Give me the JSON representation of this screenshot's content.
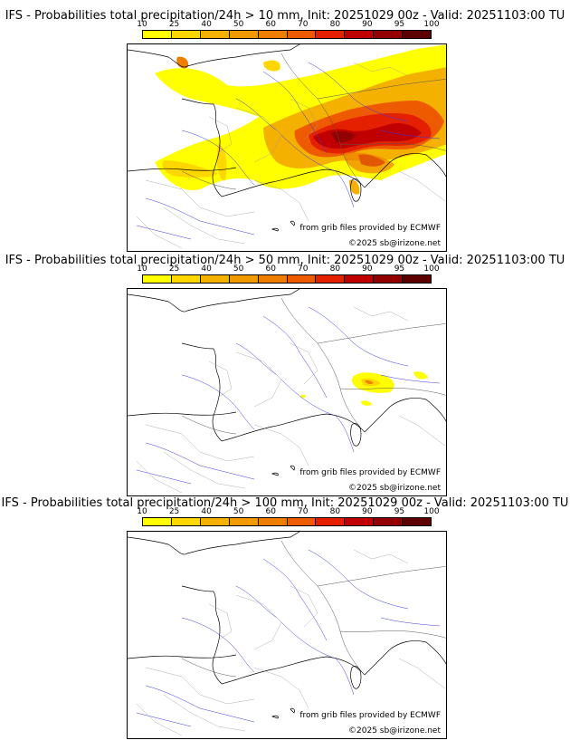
{
  "legend": {
    "ticks": [
      "10",
      "25",
      "40",
      "50",
      "60",
      "70",
      "80",
      "90",
      "95",
      "100"
    ],
    "colors": [
      "#ffff00",
      "#ffd700",
      "#f5b100",
      "#f09a00",
      "#ee7d00",
      "#ee5a00",
      "#e52000",
      "#c00000",
      "#930000",
      "#5e0000"
    ]
  },
  "panels": [
    {
      "title": "IFS - Probabilities total precipitation/24h > 10 mm, Init: 20251029 00z - Valid: 20251103:00 TU",
      "source": "from grib files provided by ECMWF",
      "copyright": "©2025 sb@irizone.net"
    },
    {
      "title": "IFS - Probabilities total precipitation/24h > 50 mm, Init: 20251029 00z - Valid: 20251103:00 TU",
      "source": "from grib files provided by ECMWF",
      "copyright": "©2025 sb@irizone.net"
    },
    {
      "title": "IFS - Probabilities total precipitation/24h > 100 mm, Init: 20251029 00z - Valid: 20251103:00 TU",
      "source": "from grib files provided by ECMWF",
      "copyright": "©2025 sb@irizone.net"
    }
  ]
}
